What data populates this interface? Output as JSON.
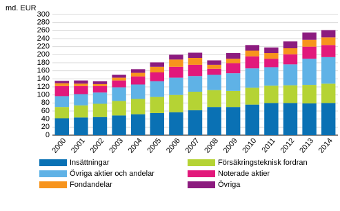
{
  "chart_data": {
    "type": "stacked_bar",
    "y_label": "md. EUR",
    "categories": [
      "2000",
      "2001",
      "2002",
      "2003",
      "2004",
      "2005",
      "2006",
      "2007",
      "2008",
      "2009",
      "2010",
      "2011",
      "2012",
      "2013",
      "2014"
    ],
    "series": [
      {
        "name": "Insättningar",
        "color": "#0a71b4",
        "values": [
          42,
          44,
          45,
          49,
          52,
          55,
          57,
          62,
          70,
          70,
          76,
          80,
          80,
          79,
          80
        ]
      },
      {
        "name": "Försäkringsteknisk fordran",
        "color": "#b5d334",
        "values": [
          28,
          30,
          33,
          36,
          38,
          40,
          43,
          46,
          42,
          40,
          42,
          43,
          44,
          46,
          48
        ]
      },
      {
        "name": "Övriga aktier och andelar",
        "color": "#5fb2e6",
        "values": [
          27,
          28,
          28,
          34,
          36,
          39,
          43,
          39,
          38,
          44,
          48,
          46,
          52,
          65,
          66
        ]
      },
      {
        "name": "Noterade aktier",
        "color": "#e2187b",
        "values": [
          25,
          20,
          16,
          17,
          20,
          22,
          27,
          28,
          15,
          25,
          30,
          21,
          25,
          30,
          30
        ]
      },
      {
        "name": "Fondandelar",
        "color": "#f7941d",
        "values": [
          7,
          6,
          5,
          7,
          9,
          14,
          18,
          17,
          10,
          11,
          14,
          14,
          15,
          17,
          19
        ]
      },
      {
        "name": "Övriga",
        "color": "#8c1b7f",
        "values": [
          6,
          8,
          7,
          7,
          9,
          11,
          12,
          13,
          11,
          14,
          14,
          14,
          17,
          18,
          18
        ]
      }
    ],
    "ylim": [
      0,
      300
    ],
    "yticks": [
      0,
      20,
      40,
      60,
      80,
      100,
      120,
      140,
      160,
      180,
      200,
      220,
      240,
      260,
      280,
      300
    ],
    "grid": true
  }
}
